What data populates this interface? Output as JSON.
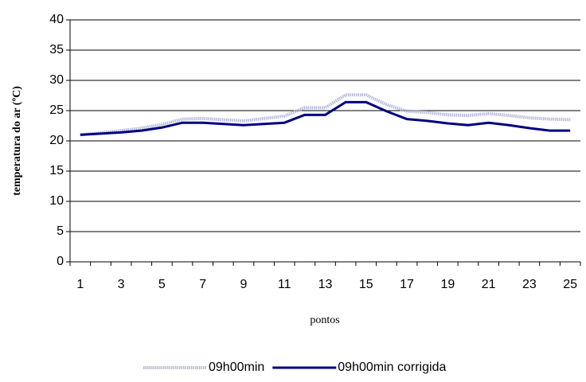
{
  "chart_data": {
    "type": "line",
    "y_label": "temperatura do ar (ºC)",
    "x_label": "pontos",
    "categories": [
      "1",
      null,
      "3",
      null,
      "5",
      null,
      "7",
      null,
      "9",
      null,
      "11",
      null,
      "13",
      null,
      "15",
      null,
      "17",
      null,
      "19",
      null,
      "21",
      null,
      "23",
      null,
      "25"
    ],
    "series": [
      {
        "name": "09h00min",
        "color": "#b4b8d6",
        "values": [
          21.0,
          21.3,
          21.7,
          22.1,
          22.7,
          23.6,
          23.7,
          23.5,
          23.3,
          23.7,
          24.1,
          25.5,
          25.5,
          27.6,
          27.6,
          26.0,
          24.9,
          24.7,
          24.3,
          24.2,
          24.5,
          24.2,
          23.8,
          23.6,
          23.5
        ]
      },
      {
        "name": "09h00min corrigida",
        "color": "#000080",
        "values": [
          21.0,
          21.2,
          21.4,
          21.7,
          22.2,
          23.0,
          23.0,
          22.8,
          22.6,
          22.8,
          23.0,
          24.3,
          24.3,
          26.4,
          26.4,
          24.9,
          23.6,
          23.3,
          22.9,
          22.6,
          23.0,
          22.6,
          22.1,
          21.7,
          21.7
        ]
      }
    ],
    "ylim": [
      0,
      40
    ],
    "yticks": [
      0,
      5,
      10,
      15,
      20,
      25,
      30,
      35,
      40
    ],
    "grid": true,
    "legend": "bottom"
  }
}
